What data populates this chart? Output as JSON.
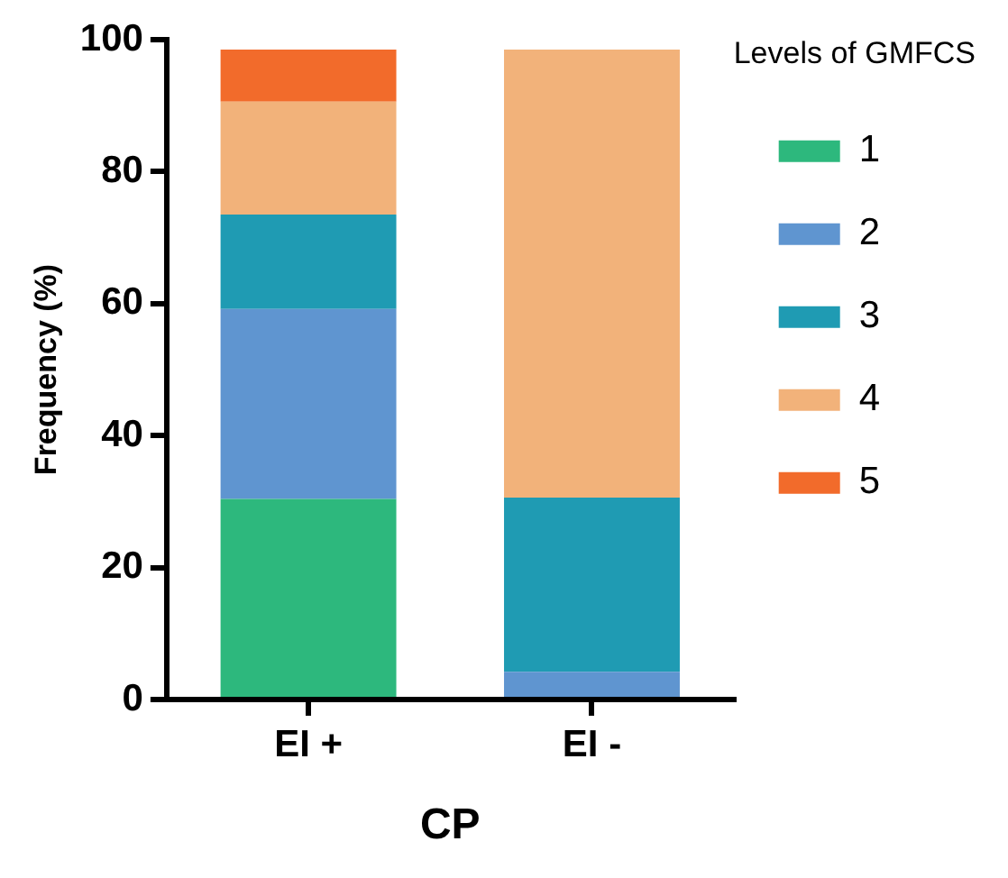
{
  "chart_data": {
    "type": "bar",
    "stacked": true,
    "xlabel": "CP",
    "ylabel": "Frequency (%)",
    "legend_title": "Levels of GMFCS",
    "legend": "right",
    "grid": false,
    "categories": [
      "EI +",
      "EI -"
    ],
    "ylim": [
      0,
      100
    ],
    "yticks": [
      0,
      20,
      40,
      60,
      80,
      100
    ],
    "series": [
      {
        "name": "1",
        "color": "#2db87d",
        "values": [
          30.4,
          0
        ]
      },
      {
        "name": "2",
        "color": "#5f95d0",
        "values": [
          28.8,
          4.2
        ]
      },
      {
        "name": "3",
        "color": "#1f9bb3",
        "values": [
          14.3,
          26.4
        ]
      },
      {
        "name": "4",
        "color": "#f2b27a",
        "values": [
          17.1,
          67.9
        ]
      },
      {
        "name": "5",
        "color": "#f26b2b",
        "values": [
          7.9,
          0
        ]
      }
    ]
  }
}
